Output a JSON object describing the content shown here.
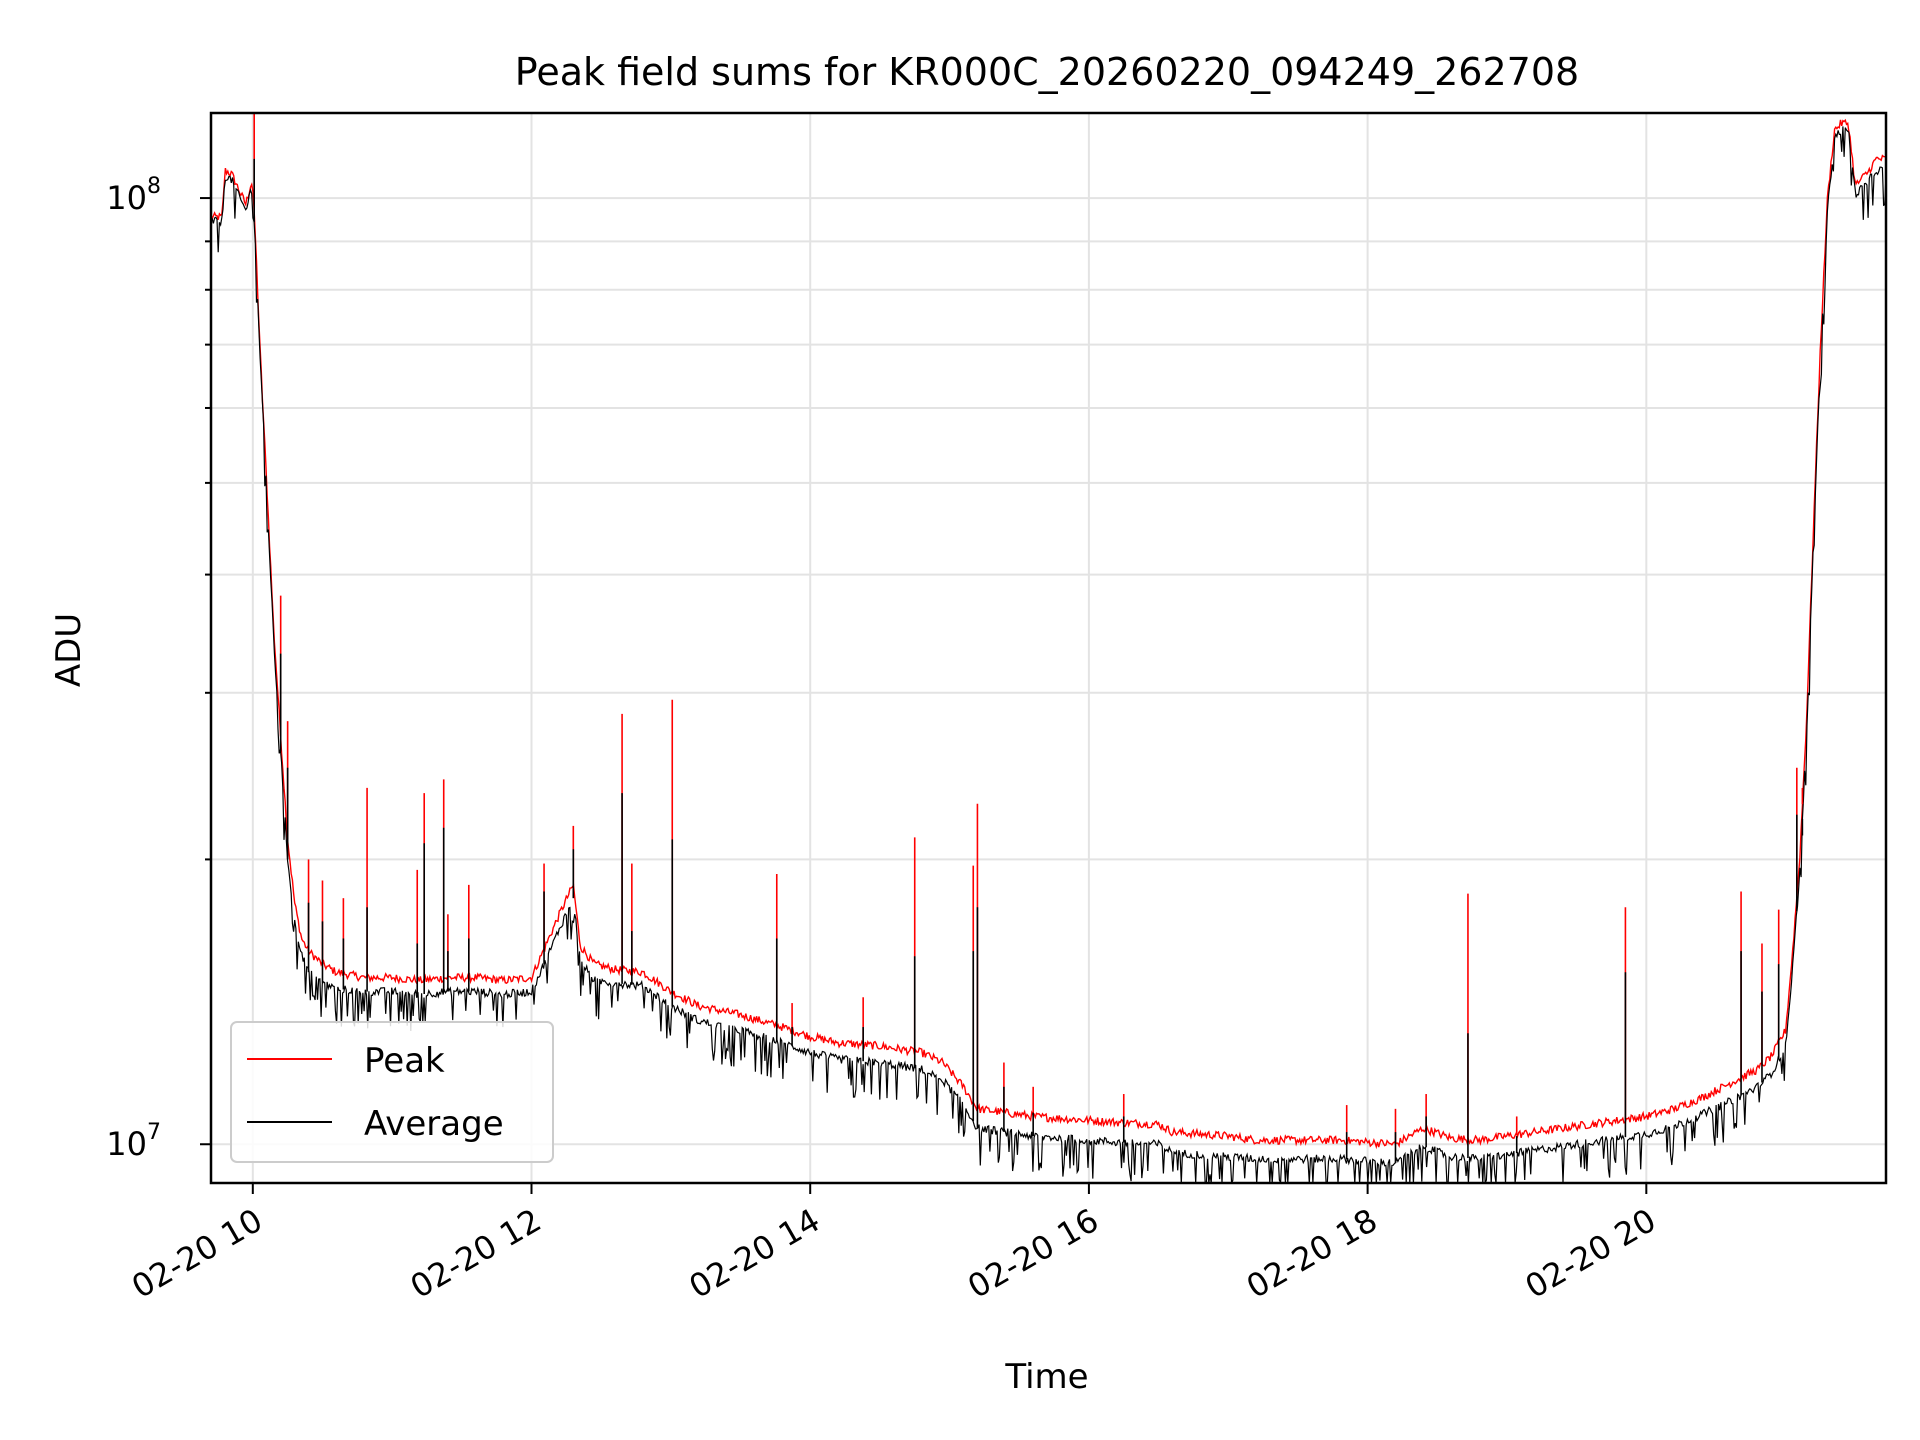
{
  "chart_data": {
    "type": "line",
    "title": "Peak field sums for KR000C_20260220_094249_262708",
    "xlabel": "Time",
    "ylabel": "ADU",
    "yscale": "log",
    "ylim": [
      9100000,
      123000000
    ],
    "xlim": [
      9.7,
      21.72
    ],
    "grid": true,
    "legend": {
      "placement": "lower-left",
      "entries": [
        "Peak",
        "Average"
      ]
    },
    "x_ticks": [
      {
        "value": 10,
        "label": "02-20 10"
      },
      {
        "value": 12,
        "label": "02-20 12"
      },
      {
        "value": 14,
        "label": "02-20 14"
      },
      {
        "value": 16,
        "label": "02-20 16"
      },
      {
        "value": 18,
        "label": "02-20 18"
      },
      {
        "value": 20,
        "label": "02-20 20"
      }
    ],
    "y_ticks_major": [
      {
        "value": 10000000,
        "base": "10",
        "exp": "7"
      },
      {
        "value": 100000000,
        "base": "10",
        "exp": "8"
      }
    ],
    "y_ticks_minor": [
      20000000,
      30000000,
      40000000,
      50000000,
      60000000,
      70000000,
      80000000,
      90000000
    ],
    "series": [
      {
        "name": "Peak",
        "color": "#ff0000",
        "x": [
          9.7,
          9.78,
          9.8,
          9.85,
          9.9,
          9.95,
          9.99,
          10.0,
          10.02,
          10.05,
          10.1,
          10.15,
          10.2,
          10.25,
          10.3,
          10.35,
          10.4,
          10.5,
          10.6,
          10.8,
          11.0,
          11.2,
          11.4,
          11.6,
          11.8,
          12.0,
          12.1,
          12.2,
          12.3,
          12.35,
          12.45,
          12.6,
          12.8,
          13.0,
          13.2,
          13.5,
          13.8,
          14.0,
          14.2,
          14.5,
          14.8,
          14.95,
          15.1,
          15.2,
          15.4,
          15.6,
          15.8,
          16.0,
          16.2,
          16.5,
          16.6,
          16.8,
          17.0,
          17.2,
          17.5,
          17.8,
          18.0,
          18.2,
          18.4,
          18.6,
          18.8,
          19.0,
          19.2,
          19.4,
          19.6,
          19.8,
          20.0,
          20.2,
          20.4,
          20.6,
          20.8,
          20.9,
          21.0,
          21.05,
          21.1,
          21.15,
          21.2,
          21.25,
          21.3,
          21.35,
          21.4,
          21.45,
          21.5,
          21.55,
          21.6,
          21.65,
          21.72
        ],
        "y": [
          95500000,
          95500000,
          107000000,
          106000000,
          102000000,
          98500000,
          104000000,
          102000000,
          90000000,
          70000000,
          50000000,
          35000000,
          27000000,
          21000000,
          18000000,
          16500000,
          16000000,
          15500000,
          15200000,
          15000000,
          15000000,
          14900000,
          15000000,
          15000000,
          14900000,
          15000000,
          16200000,
          17500000,
          18800000,
          16200000,
          15500000,
          15300000,
          15200000,
          14500000,
          14000000,
          13700000,
          13300000,
          13000000,
          12800000,
          12700000,
          12500000,
          12200000,
          11500000,
          10900000,
          10800000,
          10700000,
          10650000,
          10600000,
          10550000,
          10500000,
          10300000,
          10250000,
          10200000,
          10100000,
          10100000,
          10100000,
          10050000,
          10000000,
          10400000,
          10150000,
          10100000,
          10200000,
          10300000,
          10400000,
          10500000,
          10600000,
          10700000,
          10900000,
          11200000,
          11600000,
          12000000,
          12400000,
          13200000,
          16000000,
          20000000,
          28000000,
          45000000,
          70000000,
          100000000,
          118000000,
          120000000,
          120000000,
          103000000,
          105000000,
          107000000,
          110000000,
          110000000
        ]
      },
      {
        "name": "Average",
        "color": "#000000",
        "x": [
          9.7,
          9.78,
          9.8,
          9.85,
          9.9,
          9.95,
          9.99,
          10.0,
          10.02,
          10.05,
          10.1,
          10.15,
          10.2,
          10.25,
          10.3,
          10.35,
          10.4,
          10.5,
          10.6,
          10.8,
          11.0,
          11.2,
          11.4,
          11.6,
          11.8,
          12.0,
          12.1,
          12.2,
          12.3,
          12.35,
          12.45,
          12.6,
          12.8,
          13.0,
          13.2,
          13.5,
          13.8,
          14.0,
          14.2,
          14.5,
          14.8,
          14.95,
          15.1,
          15.2,
          15.4,
          15.6,
          15.8,
          16.0,
          16.2,
          16.5,
          16.6,
          16.8,
          17.0,
          17.2,
          17.5,
          17.8,
          18.0,
          18.2,
          18.4,
          18.6,
          18.8,
          19.0,
          19.2,
          19.4,
          19.6,
          19.8,
          20.0,
          20.2,
          20.4,
          20.6,
          20.8,
          20.9,
          21.0,
          21.05,
          21.1,
          21.15,
          21.2,
          21.25,
          21.3,
          21.35,
          21.4,
          21.45,
          21.5,
          21.55,
          21.6,
          21.65,
          21.72
        ],
        "y": [
          94500000,
          94500000,
          105500000,
          104500000,
          100500000,
          97000000,
          102500000,
          100500000,
          88500000,
          69000000,
          49000000,
          34000000,
          26000000,
          20000000,
          17200000,
          15900000,
          15200000,
          14800000,
          14600000,
          14500000,
          14500000,
          14400000,
          14500000,
          14500000,
          14400000,
          14500000,
          15600000,
          16900000,
          18200000,
          15600000,
          14900000,
          14800000,
          14700000,
          14000000,
          13500000,
          13200000,
          12800000,
          12500000,
          12300000,
          12200000,
          12000000,
          11700000,
          11000000,
          10400000,
          10300000,
          10200000,
          10150000,
          10100000,
          10050000,
          10000000,
          9800000,
          9750000,
          9700000,
          9650000,
          9650000,
          9650000,
          9600000,
          9550000,
          9950000,
          9700000,
          9650000,
          9750000,
          9850000,
          9950000,
          10050000,
          10150000,
          10250000,
          10450000,
          10750000,
          11100000,
          11500000,
          11900000,
          12700000,
          15400000,
          19300000,
          27000000,
          43500000,
          68000000,
          97000000,
          116000000,
          118000000,
          118000000,
          101000000,
          102500000,
          104500000,
          107000000,
          107000000
        ]
      }
    ],
    "spikes": {
      "x": [
        10.01,
        10.2,
        10.25,
        10.4,
        10.5,
        10.65,
        10.82,
        11.18,
        11.23,
        11.37,
        11.4,
        11.55,
        12.09,
        12.3,
        12.65,
        12.72,
        13.01,
        13.76,
        13.87,
        14.38,
        14.75,
        15.17,
        15.2,
        15.39,
        15.6,
        16.25,
        17.85,
        18.2,
        18.42,
        18.72,
        19.07,
        19.85,
        20.68,
        20.83,
        20.95,
        21.08,
        21.12
      ],
      "peak": [
        123000000,
        38000000,
        28000000,
        20000000,
        19000000,
        18200000,
        23800000,
        19500000,
        23500000,
        24300000,
        17500000,
        18800000,
        19800000,
        21700000,
        28500000,
        19800000,
        29500000,
        19300000,
        14100000,
        14300000,
        21100000,
        19700000,
        22900000,
        12200000,
        11500000,
        11300000,
        11000000,
        10900000,
        11300000,
        18400000,
        10700000,
        17800000,
        18500000,
        16300000,
        17700000,
        25000000,
        23800000
      ],
      "avg": [
        110000000,
        33000000,
        25000000,
        18000000,
        17200000,
        16500000,
        17800000,
        16300000,
        20800000,
        21600000,
        16000000,
        16500000,
        18500000,
        20500000,
        23500000,
        16800000,
        21000000,
        16500000,
        13300000,
        13300000,
        15800000,
        16000000,
        17800000,
        11500000,
        10800000,
        10700000,
        10300000,
        10300000,
        10700000,
        13100000,
        10200000,
        15200000,
        16000000,
        14500000,
        15500000,
        22300000,
        21200000
      ]
    }
  }
}
